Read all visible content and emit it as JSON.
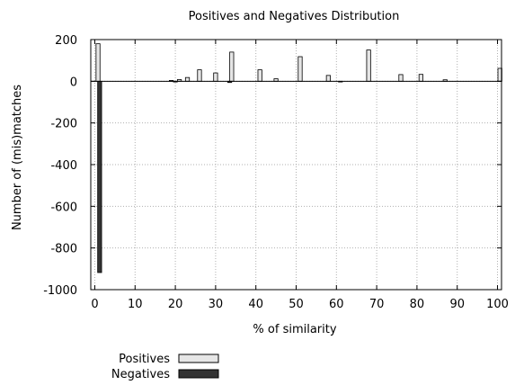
{
  "chart_data": {
    "type": "bar",
    "title": "Positives and Negatives Distribution",
    "xlabel": "% of similarity",
    "ylabel": "Number of (mis)matches",
    "xlim": [
      -1,
      101
    ],
    "ylim": [
      -1000,
      200
    ],
    "x_ticks": [
      0,
      10,
      20,
      30,
      40,
      50,
      60,
      70,
      80,
      90,
      100
    ],
    "y_ticks": [
      200,
      0,
      -200,
      -400,
      -600,
      -800,
      -1000
    ],
    "grid": true,
    "legend_position": "bottom-left",
    "series": [
      {
        "name": "Positives",
        "color": "#e6e6e6",
        "points": [
          {
            "x": 0.8,
            "y": 180
          },
          {
            "x": 19,
            "y": 4
          },
          {
            "x": 21,
            "y": 8
          },
          {
            "x": 23,
            "y": 18
          },
          {
            "x": 26,
            "y": 55
          },
          {
            "x": 30,
            "y": 40
          },
          {
            "x": 34,
            "y": 140
          },
          {
            "x": 41,
            "y": 55
          },
          {
            "x": 45,
            "y": 12
          },
          {
            "x": 51,
            "y": 118
          },
          {
            "x": 58,
            "y": 28
          },
          {
            "x": 68,
            "y": 150
          },
          {
            "x": 76,
            "y": 32
          },
          {
            "x": 81,
            "y": 33
          },
          {
            "x": 87,
            "y": 7
          },
          {
            "x": 100.6,
            "y": 62
          }
        ]
      },
      {
        "name": "Negatives",
        "color": "#333333",
        "points": [
          {
            "x": 1.2,
            "y": -918
          },
          {
            "x": 20,
            "y": -3
          },
          {
            "x": 33.5,
            "y": -6
          },
          {
            "x": 61,
            "y": -3
          }
        ]
      }
    ]
  }
}
